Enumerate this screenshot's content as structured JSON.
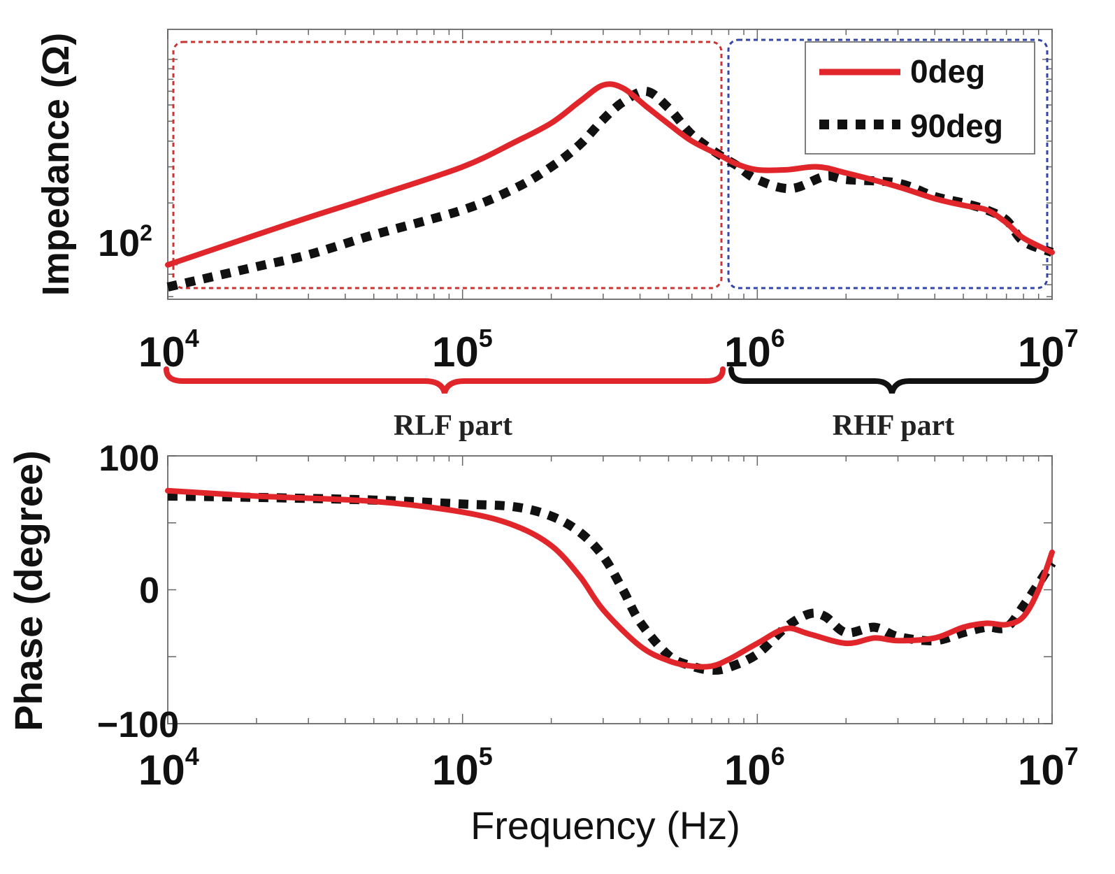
{
  "colors": {
    "deg0": "#e0262b",
    "deg90": "#111111",
    "rlf_box": "#cc3333",
    "rhf_box": "#3344aa",
    "rlf_brace": "#e0262b",
    "rhf_brace": "#111111"
  },
  "chart_data": [
    {
      "id": "impedance",
      "type": "line",
      "xscale": "log",
      "yscale": "log",
      "xlim": [
        10000,
        10000000
      ],
      "ylim": [
        68,
        1400
      ],
      "ylabel": "Impedance (Ω)",
      "ytick_labels": [
        {
          "value": 100,
          "base": "10",
          "exp": "2"
        }
      ],
      "xtick_labels": [
        {
          "value": 10000,
          "base": "10",
          "exp": "4"
        },
        {
          "value": 100000,
          "base": "10",
          "exp": "5"
        },
        {
          "value": 1000000,
          "base": "10",
          "exp": "6"
        },
        {
          "value": 10000000,
          "base": "10",
          "exp": "7"
        }
      ],
      "legend": {
        "location": "top-right",
        "entries": [
          {
            "series": "0deg",
            "label": "0deg"
          },
          {
            "series": "90deg",
            "label": "90deg"
          }
        ]
      },
      "regions": [
        {
          "name": "RLF part",
          "x_range": [
            10000,
            850000
          ],
          "color_key": "rlf_box"
        },
        {
          "name": "RHF part",
          "x_range": [
            850000,
            10000000
          ],
          "color_key": "rhf_box"
        }
      ],
      "series": [
        {
          "name": "0deg",
          "style": "solid",
          "color_key": "deg0",
          "x": [
            10000,
            20000,
            30000,
            50000,
            100000,
            150000,
            200000,
            250000,
            300000,
            350000,
            420000,
            500000,
            600000,
            750000,
            850000,
            1000000,
            1250000,
            1600000,
            2000000,
            3000000,
            4000000,
            5000000,
            6000000,
            7000000,
            8000000,
            10000000
          ],
          "y": [
            100,
            140,
            170,
            215,
            300,
            395,
            490,
            625,
            750,
            725,
            590,
            485,
            400,
            340,
            310,
            290,
            290,
            300,
            280,
            240,
            210,
            195,
            185,
            160,
            135,
            115
          ]
        },
        {
          "name": "90deg",
          "style": "dotted",
          "color_key": "deg90",
          "x": [
            10000,
            20000,
            30000,
            50000,
            100000,
            150000,
            200000,
            250000,
            300000,
            350000,
            420000,
            500000,
            600000,
            750000,
            850000,
            1000000,
            1300000,
            1700000,
            2000000,
            3000000,
            4000000,
            5000000,
            6000000,
            7000000,
            8000000,
            10000000
          ],
          "y": [
            78,
            98,
            112,
            140,
            185,
            235,
            300,
            385,
            510,
            620,
            700,
            580,
            430,
            340,
            305,
            260,
            235,
            270,
            260,
            250,
            215,
            200,
            185,
            165,
            130,
            115
          ]
        }
      ]
    },
    {
      "id": "phase",
      "type": "line",
      "xscale": "log",
      "xlim": [
        10000,
        10000000
      ],
      "ylim": [
        -100,
        100
      ],
      "xlabel": "Frequency (Hz)",
      "ylabel": "Phase (degree)",
      "ytick_labels": [
        {
          "value": 100,
          "label": "100"
        },
        {
          "value": 0,
          "label": "0"
        },
        {
          "value": -100,
          "label": "−100"
        }
      ],
      "xtick_labels": [
        {
          "value": 10000,
          "base": "10",
          "exp": "4"
        },
        {
          "value": 100000,
          "base": "10",
          "exp": "5"
        },
        {
          "value": 1000000,
          "base": "10",
          "exp": "6"
        },
        {
          "value": 10000000,
          "base": "10",
          "exp": "7"
        }
      ],
      "series": [
        {
          "name": "0deg",
          "style": "solid",
          "color_key": "deg0",
          "x": [
            10000,
            20000,
            50000,
            100000,
            150000,
            200000,
            250000,
            300000,
            400000,
            500000,
            600000,
            700000,
            800000,
            1000000,
            1250000,
            1500000,
            2000000,
            2500000,
            3000000,
            4000000,
            5000000,
            6000000,
            7000000,
            8000000,
            9000000,
            10000000
          ],
          "y": [
            74,
            70,
            66,
            58,
            48,
            33,
            10,
            -15,
            -42,
            -53,
            -57,
            -57,
            -52,
            -40,
            -29,
            -33,
            -40,
            -36,
            -38,
            -36,
            -28,
            -25,
            -26,
            -20,
            0,
            28
          ]
        },
        {
          "name": "90deg",
          "style": "dotted",
          "color_key": "deg90",
          "x": [
            10000,
            20000,
            50000,
            100000,
            150000,
            200000,
            250000,
            300000,
            350000,
            400000,
            500000,
            600000,
            700000,
            800000,
            1000000,
            1250000,
            1500000,
            1700000,
            2000000,
            2500000,
            3000000,
            4000000,
            5000000,
            6000000,
            7000000,
            8000000,
            10000000
          ],
          "y": [
            70,
            69,
            67,
            64,
            62,
            55,
            43,
            25,
            0,
            -24,
            -49,
            -57,
            -60,
            -58,
            -48,
            -28,
            -18,
            -20,
            -32,
            -28,
            -35,
            -38,
            -32,
            -28,
            -28,
            -12,
            20
          ]
        }
      ]
    }
  ]
}
